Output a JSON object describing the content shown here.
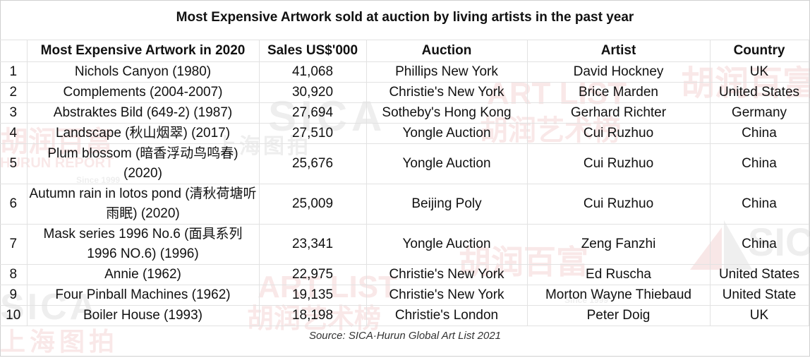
{
  "title": "Most Expensive Artwork sold at auction by living artists in the past year",
  "headers": [
    "",
    "Most Expensive Artwork in 2020",
    "Sales US$'000",
    "Auction",
    "Artist",
    "Country"
  ],
  "rows": [
    {
      "rank": "1",
      "artwork": "Nichols Canyon (1980)",
      "sales": "41,068",
      "auction": "Phillips New York",
      "artist": "David Hockney",
      "country": "UK"
    },
    {
      "rank": "2",
      "artwork": "Complements (2004-2007)",
      "sales": "30,920",
      "auction": "Christie's New York",
      "artist": "Brice Marden",
      "country": "United States"
    },
    {
      "rank": "3",
      "artwork": "Abstraktes Bild (649-2) (1987)",
      "sales": "27,694",
      "auction": "Sotheby's Hong Kong",
      "artist": "Gerhard Richter",
      "country": "Germany"
    },
    {
      "rank": "4",
      "artwork": "Landscape (秋山烟翠) (2017)",
      "sales": "27,510",
      "auction": "Yongle Auction",
      "artist": "Cui Ruzhuo",
      "country": "China"
    },
    {
      "rank": "5",
      "artwork": "Plum blossom (暗香浮动鸟鸣春) (2020)",
      "sales": "25,676",
      "auction": "Yongle Auction",
      "artist": "Cui Ruzhuo",
      "country": "China"
    },
    {
      "rank": "6",
      "artwork": "Autumn rain in lotos pond (清秋荷塘听雨眠) (2020)",
      "sales": "25,009",
      "auction": "Beijing Poly",
      "artist": "Cui Ruzhuo",
      "country": "China"
    },
    {
      "rank": "7",
      "artwork": "Mask series 1996 No.6 (面具系列 1996 NO.6) (1996)",
      "sales": "23,341",
      "auction": "Yongle Auction",
      "artist": "Zeng Fanzhi",
      "country": "China"
    },
    {
      "rank": "8",
      "artwork": "Annie (1962)",
      "sales": "22,975",
      "auction": "Christie's New York",
      "artist": "Ed Ruscha",
      "country": "United States"
    },
    {
      "rank": "9",
      "artwork": "Four Pinball Machines (1962)",
      "sales": "19,135",
      "auction": "Christie's New York",
      "artist": "Morton Wayne Thiebaud",
      "country": "United State"
    },
    {
      "rank": "10",
      "artwork": "Boiler House (1993)",
      "sales": "18,198",
      "auction": "Christie's London",
      "artist": "Peter Doig",
      "country": "UK"
    }
  ],
  "source": "Source: SICA·Hurun Global Art List 2021",
  "watermarks": {
    "sica": "SICA",
    "hurun_cn": "胡润百富",
    "artlist": "ART LIST",
    "artlist_cn": "胡润艺术榜",
    "shanghai": "上海图拍",
    "hurun_report": "HURUN REPORT",
    "since": "Since 1999"
  }
}
